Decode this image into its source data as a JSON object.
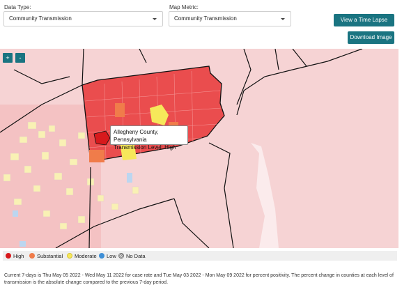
{
  "controls": {
    "data_type_label": "Data Type:",
    "data_type_value": "Community Transmission",
    "map_metric_label": "Map Metric:",
    "map_metric_value": "Community Transmission",
    "time_lapse_label": "View a Time Lapse",
    "download_label": "Download Image"
  },
  "map": {
    "zoom_in": "+",
    "zoom_out": "-",
    "tooltip": {
      "county": "Allegheny County, Pennsylvania",
      "level": "Transmission Level: High"
    }
  },
  "legend": [
    {
      "label": "High",
      "color": "#d7191c"
    },
    {
      "label": "Substantial",
      "color": "#f07c4a"
    },
    {
      "label": "Moderate",
      "color": "#f6e85a"
    },
    {
      "label": "Low",
      "color": "#3f8fd6"
    },
    {
      "label": "No Data",
      "color": "#ffffff"
    }
  ],
  "footnote": "Current 7-days is Thu May 05 2022 - Wed May 11 2022 for case rate and Tue May 03 2022 - Mon May 09 2022 for percent positivity. The percent change in counties at each level of transmission is the absolute change compared to the previous 7-day period.",
  "colors": {
    "accent": "#1a7481",
    "high": "#ea4d4e",
    "high_dark": "#d7191c",
    "substantial": "#f07c4a",
    "moderate": "#f6e85a",
    "low": "#3f8fd6",
    "surrounding": "#f6d3d4"
  }
}
